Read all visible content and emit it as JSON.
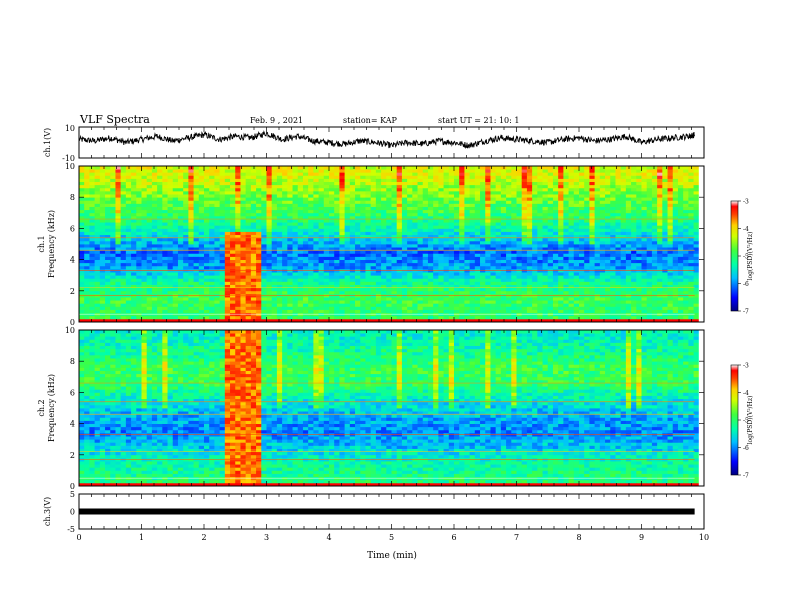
{
  "header": {
    "title": "VLF Spectra",
    "date": "Feb. 9 , 2021",
    "station": "station= KAP",
    "start": "start  UT =   21: 10: 1"
  },
  "colors": {
    "background": "#ffffff",
    "trace": "#000000",
    "colormap": [
      "#00007f",
      "#0000ff",
      "#00a0ff",
      "#00ffff",
      "#40ff80",
      "#a0ff40",
      "#ffff00",
      "#ff8000",
      "#ff0000",
      "#ffffff"
    ]
  },
  "chart_data": [
    {
      "type": "line",
      "panel": "ch1-waveform",
      "ylabel": "ch.1(V)",
      "ylim": [
        -10,
        10
      ],
      "ytick_labels": [
        "10",
        "-10"
      ],
      "x": [
        0,
        0.25,
        0.5,
        0.75,
        1.0,
        1.25,
        1.5,
        1.75,
        2.0,
        2.25,
        2.5,
        2.75,
        3.0,
        3.25,
        3.5,
        3.75,
        4.0,
        4.25,
        4.5,
        4.75,
        5.0,
        5.25,
        5.5,
        5.75,
        6.0,
        6.25,
        6.5,
        6.75,
        7.0,
        7.25,
        7.5,
        7.75,
        8.0,
        8.25,
        8.5,
        8.75,
        9.0,
        9.25,
        9.5,
        9.75,
        9.85
      ],
      "y": [
        2,
        1,
        3,
        0,
        2,
        4,
        1,
        3,
        5,
        2,
        4,
        3,
        6,
        2,
        4,
        1,
        0,
        -1,
        1,
        0,
        -2,
        0,
        -1,
        1,
        0,
        -2,
        1,
        3,
        2,
        1,
        0,
        2,
        3,
        1,
        2,
        4,
        0,
        2,
        3,
        4,
        5
      ]
    },
    {
      "type": "heatmap",
      "panel": "ch1-spectrogram",
      "ylabel": "ch.1\nFrequency (kHz)",
      "xlim": [
        0,
        10
      ],
      "ylim": [
        0,
        10
      ],
      "yticks": [
        0,
        2,
        4,
        6,
        8,
        10
      ],
      "colorbar": {
        "label": "log(PSD)(V²/Hz)",
        "ticks": [
          -3,
          -4,
          -5,
          -6,
          -7
        ],
        "range": [
          -7,
          -3
        ]
      },
      "band_levels_by_freq_khz": [
        [
          0.5,
          -5.0
        ],
        [
          1.5,
          -4.9
        ],
        [
          2.5,
          -5.2
        ],
        [
          3.5,
          -5.9
        ],
        [
          4.5,
          -6.1
        ],
        [
          5.5,
          -5.6
        ],
        [
          6.5,
          -5.1
        ],
        [
          7.5,
          -4.8
        ],
        [
          8.5,
          -4.5
        ],
        [
          9.5,
          -4.2
        ]
      ],
      "burst_interval_min": [
        2.3,
        2.95
      ],
      "burst_level": -3.6,
      "burst_freq_range_khz": [
        0.2,
        5.8
      ]
    },
    {
      "type": "heatmap",
      "panel": "ch2-spectrogram",
      "ylabel": "ch.2\nFrequency (kHz)",
      "xlim": [
        0,
        10
      ],
      "ylim": [
        0,
        10
      ],
      "yticks": [
        0,
        2,
        4,
        6,
        8,
        10
      ],
      "colorbar": {
        "label": "log(PSD)(V²/Hz)",
        "ticks": [
          -3,
          -4,
          -5,
          -6,
          -7
        ],
        "range": [
          -7,
          -3
        ]
      },
      "band_levels_by_freq_khz": [
        [
          0.5,
          -5.1
        ],
        [
          1.5,
          -5.3
        ],
        [
          2.5,
          -5.7
        ],
        [
          3.5,
          -6.0
        ],
        [
          4.5,
          -5.8
        ],
        [
          5.5,
          -5.5
        ],
        [
          6.5,
          -5.0
        ],
        [
          7.5,
          -4.9
        ],
        [
          8.5,
          -5.2
        ],
        [
          9.5,
          -5.4
        ]
      ],
      "burst_interval_min": [
        2.3,
        2.95
      ],
      "burst_level": -3.6,
      "burst_freq_range_khz": [
        0.2,
        9.9
      ]
    },
    {
      "type": "line",
      "panel": "ch3-signal",
      "ylabel": "ch.3(V)",
      "ylim": [
        -5,
        5
      ],
      "ytick_labels": [
        "5",
        "0",
        "-5"
      ],
      "x": [
        0,
        9.85
      ],
      "y": [
        0,
        0
      ],
      "xlabel": "Time (min)",
      "xlim": [
        0,
        10
      ],
      "xticks": [
        0,
        1,
        2,
        3,
        4,
        5,
        6,
        7,
        8,
        9,
        10
      ]
    }
  ]
}
